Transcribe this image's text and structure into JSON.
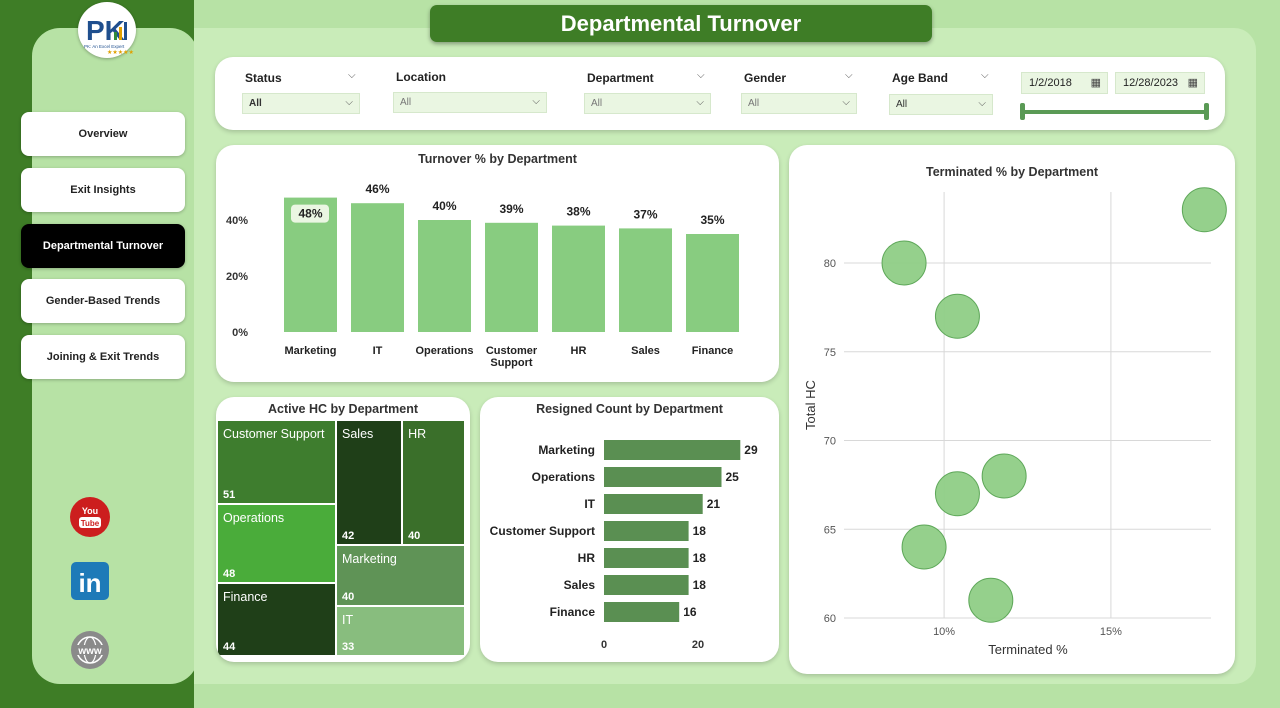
{
  "header": {
    "title": "Departmental Turnover"
  },
  "logo": {
    "text": "PK",
    "subtitle": "PK: An Excel Expert"
  },
  "nav": {
    "items": [
      {
        "label": "Overview",
        "active": false
      },
      {
        "label": "Exit Insights",
        "active": false
      },
      {
        "label": "Departmental Turnover",
        "active": true
      },
      {
        "label": "Gender-Based Trends",
        "active": false
      },
      {
        "label": "Joining & Exit Trends",
        "active": false
      }
    ]
  },
  "filters": {
    "status": {
      "label": "Status",
      "value": "All"
    },
    "location": {
      "label": "Location",
      "value": "All"
    },
    "department": {
      "label": "Department",
      "value": "All"
    },
    "gender": {
      "label": "Gender",
      "value": "All"
    },
    "age_band": {
      "label": "Age Band",
      "value": "All"
    },
    "date_start": "1/2/2018",
    "date_end": "12/28/2023"
  },
  "social": {
    "youtube_top": "You",
    "youtube_bottom": "Tube",
    "linkedin": "in",
    "web": "www"
  },
  "colors": {
    "dark_green": "#3e7d26",
    "bar_green": "#88cc80",
    "bubble": "#8fcd86"
  },
  "chart_data": [
    {
      "id": "turnover",
      "type": "bar",
      "title": "Turnover % by Department",
      "categories": [
        "Marketing",
        "IT",
        "Operations",
        "Customer Support",
        "HR",
        "Sales",
        "Finance"
      ],
      "values": [
        48,
        46,
        40,
        39,
        38,
        37,
        35
      ],
      "labels": [
        "48%",
        "46%",
        "40%",
        "39%",
        "38%",
        "37%",
        "35%"
      ],
      "y_ticks": [
        "0%",
        "20%",
        "40%"
      ],
      "ylim": [
        0,
        50
      ]
    },
    {
      "id": "active_hc",
      "type": "treemap",
      "title": "Active HC by Department",
      "items": [
        {
          "name": "Customer Support",
          "value": 51
        },
        {
          "name": "Operations",
          "value": 48
        },
        {
          "name": "Finance",
          "value": 44
        },
        {
          "name": "Sales",
          "value": 42
        },
        {
          "name": "HR",
          "value": 40
        },
        {
          "name": "Marketing",
          "value": 40
        },
        {
          "name": "IT",
          "value": 33
        }
      ]
    },
    {
      "id": "resigned",
      "type": "bar",
      "orientation": "horizontal",
      "title": "Resigned Count by Department",
      "categories": [
        "Marketing",
        "Operations",
        "IT",
        "Customer Support",
        "HR",
        "Sales",
        "Finance"
      ],
      "values": [
        29,
        25,
        21,
        18,
        18,
        18,
        16
      ],
      "x_ticks": [
        "0",
        "20"
      ],
      "xlim": [
        0,
        33
      ]
    },
    {
      "id": "terminated",
      "type": "scatter",
      "title": "Terminated % by Department",
      "xlabel": "Terminated %",
      "ylabel": "Total HC",
      "x_ticks": [
        "10%",
        "15%"
      ],
      "y_ticks": [
        "60",
        "65",
        "70",
        "75",
        "80"
      ],
      "xlim": [
        7,
        18
      ],
      "ylim": [
        60,
        84
      ],
      "points": [
        {
          "x": 8.8,
          "y": 80
        },
        {
          "x": 10.4,
          "y": 77
        },
        {
          "x": 17.8,
          "y": 83
        },
        {
          "x": 11.8,
          "y": 68
        },
        {
          "x": 10.4,
          "y": 67
        },
        {
          "x": 9.4,
          "y": 64
        },
        {
          "x": 11.4,
          "y": 61
        }
      ]
    }
  ]
}
